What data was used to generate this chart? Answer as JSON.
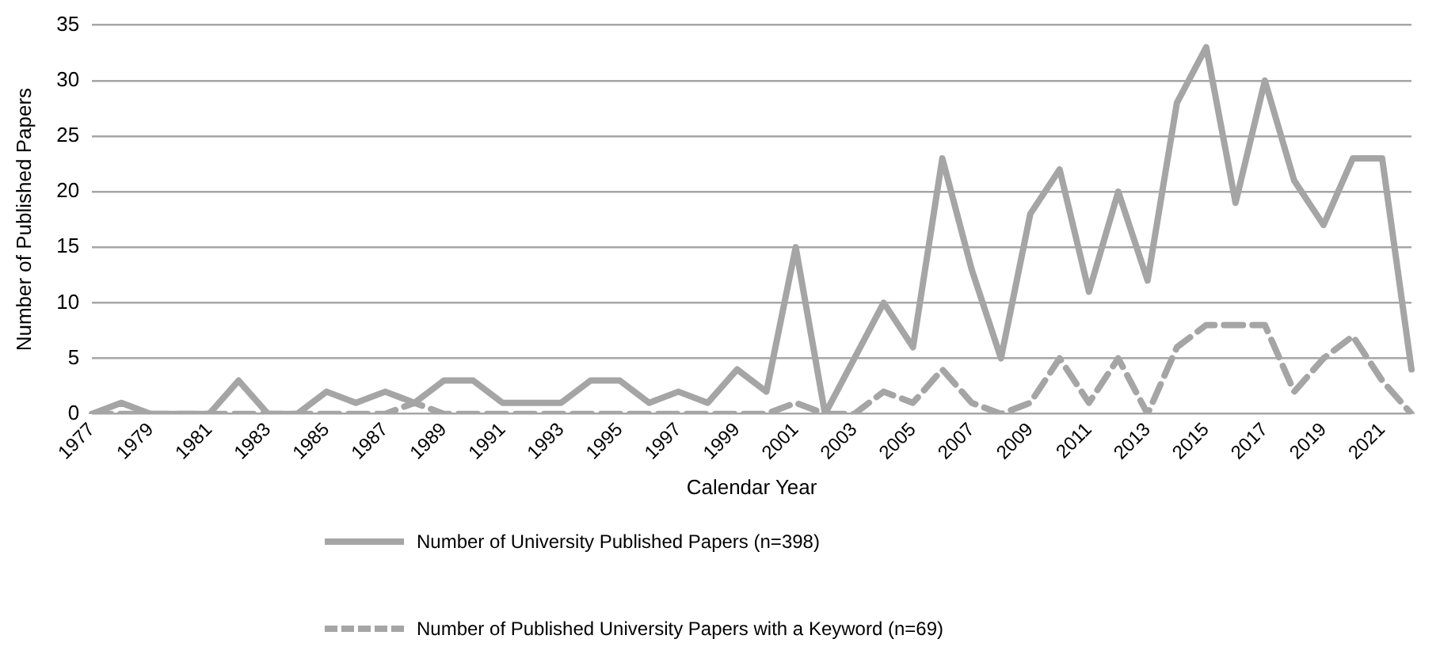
{
  "chart_data": {
    "type": "line",
    "xlabel": "Calendar Year",
    "ylabel": "Number of Published Papers",
    "categories": [
      "1977",
      null,
      "1979",
      null,
      "1981",
      null,
      "1983",
      null,
      "1985",
      null,
      "1987",
      null,
      "1989",
      null,
      "1991",
      null,
      "1993",
      null,
      "1995",
      null,
      "1997",
      null,
      "1999",
      null,
      "2001",
      null,
      "2003",
      null,
      "2005",
      null,
      "2007",
      null,
      "2009",
      null,
      "2011",
      null,
      "2013",
      null,
      "2015",
      null,
      "2017",
      null,
      "2019",
      null,
      "2021",
      null
    ],
    "series": [
      {
        "name": "Number of University Published Papers (n=398)",
        "color": "#a5a5a5",
        "line_style": "solid",
        "values": [
          0,
          1,
          0,
          0,
          0,
          3,
          0,
          0,
          2,
          1,
          2,
          1,
          3,
          3,
          1,
          1,
          1,
          3,
          3,
          1,
          2,
          1,
          4,
          2,
          15,
          0,
          5,
          10,
          6,
          23,
          13,
          5,
          18,
          22,
          11,
          20,
          12,
          28,
          33,
          19,
          30,
          21,
          17,
          23,
          23,
          4
        ]
      },
      {
        "name": "Number of Published University Papers with a Keyword (n=69)",
        "color": "#a5a5a5",
        "line_style": "dashed",
        "values": [
          0,
          0,
          0,
          0,
          0,
          0,
          0,
          0,
          0,
          0,
          0,
          1,
          0,
          0,
          0,
          0,
          0,
          0,
          0,
          0,
          0,
          0,
          0,
          0,
          1,
          0,
          0,
          2,
          1,
          4,
          1,
          0,
          1,
          5,
          1,
          5,
          0,
          6,
          8,
          8,
          8,
          2,
          5,
          7,
          3,
          0
        ]
      }
    ],
    "ylim": [
      0,
      35
    ],
    "yticks": [
      0,
      5,
      10,
      15,
      20,
      25,
      30,
      35
    ],
    "grid": "y",
    "legend": "bottom",
    "marker": "none"
  }
}
